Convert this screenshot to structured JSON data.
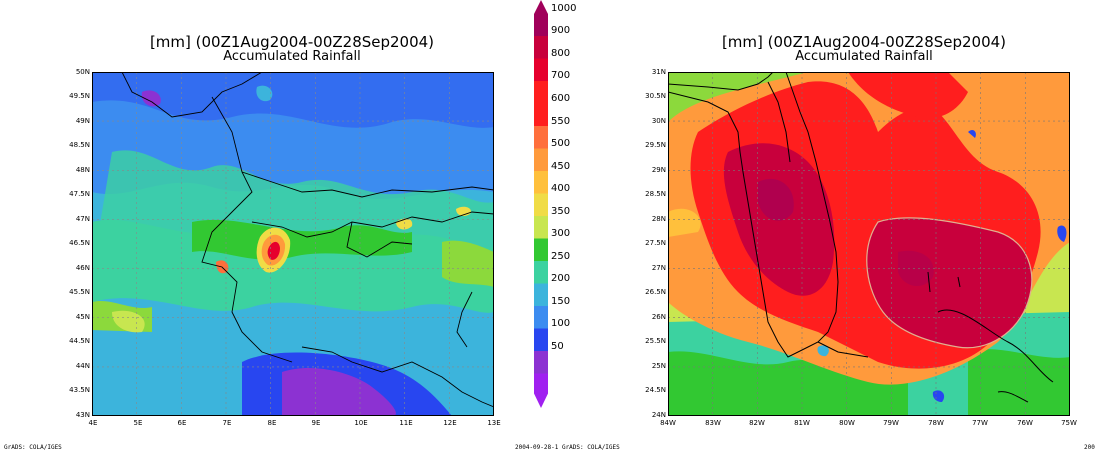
{
  "colorbar": {
    "levels": [
      "1000",
      "900",
      "800",
      "700",
      "600",
      "550",
      "500",
      "450",
      "400",
      "350",
      "300",
      "250",
      "200",
      "150",
      "100",
      "50"
    ],
    "colors": [
      "#a0005a",
      "#c8003c",
      "#e6002d",
      "#ff1e1e",
      "#ff6f3c",
      "#ff9a3c",
      "#ffc03c",
      "#f0dc46",
      "#c8e650",
      "#8cd93c",
      "#32c832",
      "#3cd2a0",
      "#3cb4dc",
      "#3c8cf0",
      "#2846f0",
      "#8c32d2",
      "#a020f0"
    ]
  },
  "maps": [
    {
      "title": "[mm] (00Z1Aug2004-00Z28Sep2004)",
      "subtitle": "Accumulated Rainfall",
      "lat_labels": [
        "50N",
        "49.5N",
        "49N",
        "48.5N",
        "48N",
        "47.5N",
        "47N",
        "46.5N",
        "46N",
        "45.5N",
        "45N",
        "44.5N",
        "44N",
        "43.5N",
        "43N"
      ],
      "lon_labels": [
        "4E",
        "5E",
        "6E",
        "7E",
        "8E",
        "9E",
        "10E",
        "11E",
        "12E",
        "13E"
      ],
      "footer_left": "GrADS: COLA/IGES"
    },
    {
      "title": "[mm] (00Z1Aug2004-00Z28Sep2004)",
      "subtitle": "Accumulated Rainfall",
      "lat_labels": [
        "31N",
        "30.5N",
        "30N",
        "29.5N",
        "29N",
        "28.5N",
        "28N",
        "27.5N",
        "27N",
        "26.5N",
        "26N",
        "25.5N",
        "25N",
        "24.5N",
        "24N"
      ],
      "lon_labels": [
        "84W",
        "83W",
        "82W",
        "81W",
        "80W",
        "79W",
        "78W",
        "77W",
        "76W",
        "75W"
      ],
      "footer_center": "2004-09-28-1 GrADS: COLA/IGES",
      "footer_right": "200"
    }
  ]
}
